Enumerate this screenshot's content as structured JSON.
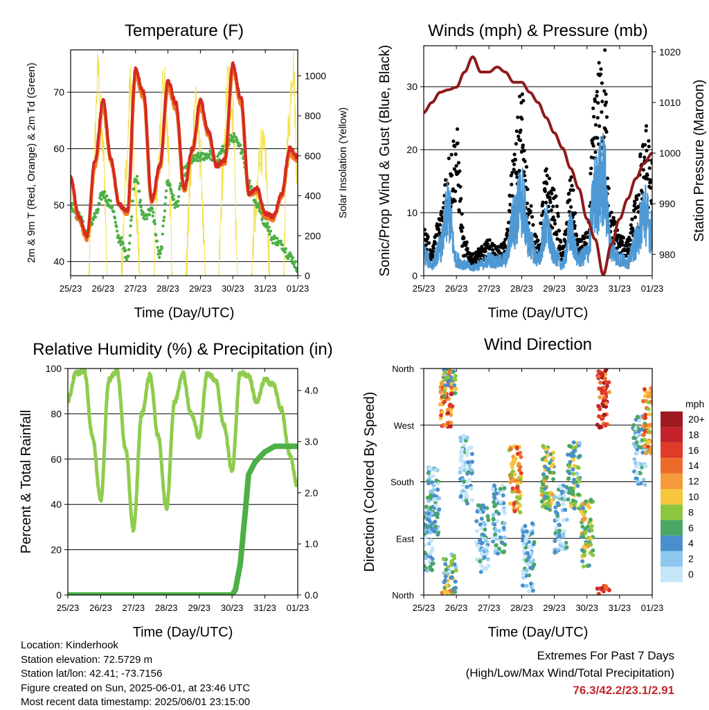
{
  "chart_data": [
    {
      "type": "line",
      "title": "Temperature (F)",
      "xlabel": "Time (Day/UTC)",
      "ylabel": "2m & 9m T (Red, Orange) & 2m Td (Green)",
      "ylabel_right": "Solar Insolation (Yellow)",
      "x_ticks": [
        "25/23",
        "26/23",
        "27/23",
        "28/23",
        "29/23",
        "30/23",
        "31/23",
        "01/23"
      ],
      "y_ticks": [
        40,
        50,
        60,
        70
      ],
      "y2_ticks": [
        0,
        200,
        400,
        600,
        800,
        1000
      ],
      "ylim": [
        37.5,
        77.5
      ],
      "y2lim": [
        0,
        1130
      ],
      "grid_y": true,
      "series": [
        {
          "name": "2m T",
          "color": "#d42a22",
          "x": [
            0,
            0.25,
            0.5,
            0.75,
            1.0,
            1.25,
            1.5,
            1.75,
            2.0,
            2.25,
            2.5,
            2.75,
            3.0,
            3.25,
            3.5,
            3.75,
            4.0,
            4.25,
            4.5,
            4.75,
            5.0,
            5.25,
            5.5,
            5.75,
            6.0,
            6.25,
            6.5,
            6.75,
            7.0
          ],
          "values": [
            55,
            48,
            44.5,
            58,
            68.5,
            58,
            50,
            49,
            74,
            70,
            51,
            57,
            72,
            68,
            53,
            60,
            68.5,
            63,
            57,
            58,
            75,
            69,
            52,
            53,
            48.5,
            48,
            52,
            60,
            58.5
          ]
        },
        {
          "name": "9m T",
          "color": "#f07a20",
          "x": [
            0,
            0.25,
            0.5,
            0.75,
            1.0,
            1.25,
            1.5,
            1.75,
            2.0,
            2.25,
            2.5,
            2.75,
            3.0,
            3.25,
            3.5,
            3.75,
            4.0,
            4.25,
            4.5,
            4.75,
            5.0,
            5.25,
            5.5,
            5.75,
            6.0,
            6.25,
            6.5,
            6.75,
            7.0
          ],
          "values": [
            54.5,
            47.5,
            44,
            57,
            67.5,
            57.5,
            50,
            48.5,
            73,
            69,
            50.5,
            56.5,
            71,
            67,
            52.5,
            59.5,
            67.5,
            62.5,
            57,
            57.5,
            74,
            68,
            52,
            52.5,
            48,
            47.5,
            51.5,
            59,
            58
          ]
        },
        {
          "name": "2m Td",
          "color": "#4cb046",
          "x": [
            0,
            0.25,
            0.5,
            0.75,
            1.0,
            1.25,
            1.5,
            1.75,
            2.0,
            2.25,
            2.5,
            2.75,
            3.0,
            3.25,
            3.5,
            3.75,
            4.0,
            4.25,
            4.5,
            4.75,
            5.0,
            5.25,
            5.5,
            5.75,
            6.0,
            6.25,
            6.5,
            6.75,
            7.0
          ],
          "values": [
            50,
            48,
            45,
            48,
            52,
            50,
            44,
            41,
            55,
            48,
            49,
            41,
            54,
            50,
            56,
            58,
            58.5,
            59,
            58,
            60,
            62,
            60,
            54,
            50,
            47,
            44,
            43,
            41,
            39
          ]
        },
        {
          "name": "Solar Insolation",
          "color": "#f2e04a",
          "x": [
            0.55,
            0.7,
            0.85,
            1.0,
            1.15,
            1.55,
            1.7,
            1.85,
            2.0,
            2.15,
            2.55,
            2.7,
            2.85,
            3.0,
            3.15,
            3.55,
            3.7,
            3.85,
            4.0,
            4.15,
            4.55,
            4.7,
            4.85,
            5.0,
            5.15,
            5.55,
            5.7,
            5.85,
            6.0,
            6.15,
            6.55,
            6.7,
            6.85,
            7.0
          ],
          "values": [
            0,
            500,
            1020,
            620,
            0,
            0,
            480,
            950,
            380,
            0,
            0,
            540,
            1000,
            700,
            0,
            0,
            500,
            900,
            600,
            0,
            0,
            520,
            980,
            820,
            0,
            0,
            300,
            640,
            580,
            0,
            0,
            700,
            1060,
            480
          ]
        }
      ]
    },
    {
      "type": "scatter",
      "title": "Winds (mph) & Pressure (mb)",
      "xlabel": "Time (Day/UTC)",
      "ylabel": "Sonic/Prop Wind & Gust (Blue, Black)",
      "ylabel_right": "Station Pressure (Maroon)",
      "x_ticks": [
        "25/23",
        "26/23",
        "27/23",
        "28/23",
        "29/23",
        "30/23",
        "31/23",
        "01/23"
      ],
      "y_ticks": [
        0,
        10,
        20,
        30
      ],
      "y2_ticks": [
        980,
        990,
        1000,
        1010,
        1020
      ],
      "ylim": [
        0,
        36.5
      ],
      "y2lim": [
        975.8,
        1021.2
      ],
      "grid_y": true,
      "series": [
        {
          "name": "Wind",
          "color": "#4e99d4",
          "x": [
            0,
            0.25,
            0.5,
            0.75,
            1.0,
            1.25,
            1.5,
            1.75,
            2.0,
            2.25,
            2.5,
            2.75,
            3.0,
            3.25,
            3.5,
            3.75,
            4.0,
            4.25,
            4.5,
            4.75,
            5.0,
            5.25,
            5.5,
            5.75,
            6.0,
            6.25,
            6.5,
            6.75,
            7.0
          ],
          "values": [
            4,
            2,
            5,
            12,
            3,
            2,
            1.5,
            2,
            3,
            2.5,
            3,
            10,
            14,
            6,
            3,
            9,
            4,
            2,
            8,
            3,
            4,
            15,
            18,
            5,
            3,
            2.5,
            6,
            12,
            8
          ]
        },
        {
          "name": "Gust",
          "color": "#000000",
          "x": [
            0,
            0.25,
            0.5,
            0.75,
            1.0,
            1.25,
            1.5,
            1.75,
            2.0,
            2.25,
            2.5,
            2.75,
            3.0,
            3.25,
            3.5,
            3.75,
            4.0,
            4.25,
            4.5,
            4.75,
            5.0,
            5.25,
            5.5,
            5.75,
            6.0,
            6.25,
            6.5,
            6.75,
            7.0
          ],
          "values": [
            7,
            4,
            9,
            17,
            21,
            5,
            3,
            4,
            5,
            4,
            5,
            17,
            27,
            10,
            5,
            15,
            12,
            4,
            14,
            5,
            6,
            26,
            34,
            9,
            6,
            5,
            11,
            22,
            17
          ]
        },
        {
          "name": "Station Pressure",
          "color": "#8e1a1a",
          "x": [
            0,
            0.25,
            0.5,
            0.75,
            1.0,
            1.25,
            1.5,
            1.75,
            2.0,
            2.25,
            2.5,
            2.75,
            3.0,
            3.25,
            3.5,
            3.75,
            4.0,
            4.25,
            4.5,
            4.75,
            5.0,
            5.25,
            5.5,
            5.75,
            6.0,
            6.25,
            6.5,
            6.75,
            7.0
          ],
          "values": [
            1008,
            1010,
            1012,
            1012.5,
            1013,
            1016,
            1019,
            1016,
            1016,
            1017,
            1016,
            1014,
            1014,
            1012,
            1010,
            1007,
            1004,
            1001,
            997,
            993,
            987,
            983,
            976,
            982,
            987,
            991,
            995,
            998,
            1000
          ]
        }
      ]
    },
    {
      "type": "line",
      "title": "Relative Humidity (%) & Precipitation (in)",
      "xlabel": "Time (Day/UTC)",
      "ylabel": "Percent & Total Rainfall",
      "x_ticks": [
        "25/23",
        "26/23",
        "27/23",
        "28/23",
        "29/23",
        "30/23",
        "31/23",
        "01/23"
      ],
      "y_ticks": [
        0,
        20,
        40,
        60,
        80,
        100
      ],
      "y2_ticks": [
        0.0,
        1.0,
        2.0,
        3.0,
        4.0
      ],
      "ylim": [
        0,
        100
      ],
      "y2lim": [
        0,
        4.43
      ],
      "grid_y": true,
      "series": [
        {
          "name": "Relative Humidity",
          "color": "#8fcc4e",
          "x": [
            0,
            0.25,
            0.5,
            0.75,
            1.0,
            1.25,
            1.5,
            1.75,
            2.0,
            2.25,
            2.5,
            2.75,
            3.0,
            3.25,
            3.5,
            3.75,
            4.0,
            4.25,
            4.5,
            4.75,
            5.0,
            5.25,
            5.5,
            5.75,
            6.0,
            6.25,
            6.5,
            6.75,
            7.0
          ],
          "values": [
            86,
            98,
            99,
            70,
            42,
            95,
            99,
            65,
            29,
            80,
            97,
            70,
            38,
            85,
            98,
            80,
            70,
            98,
            95,
            75,
            55,
            98,
            97,
            85,
            95,
            93,
            82,
            62,
            48
          ]
        },
        {
          "name": "Total Rainfall",
          "color": "#4cb046",
          "x": [
            0,
            1,
            2,
            3,
            4,
            5.0,
            5.1,
            5.25,
            5.4,
            5.5,
            5.7,
            6.0,
            6.3,
            6.5,
            7.0
          ],
          "values": [
            0,
            0,
            0,
            0,
            0,
            0,
            0.1,
            0.6,
            1.6,
            2.35,
            2.6,
            2.8,
            2.91,
            2.91,
            2.91
          ]
        }
      ]
    },
    {
      "type": "scatter",
      "title": "Wind Direction",
      "xlabel": "Time (Day/UTC)",
      "ylabel": "Direction (Colored By Speed)",
      "x_ticks": [
        "25/23",
        "26/23",
        "27/23",
        "28/23",
        "29/23",
        "30/23",
        "31/23",
        "01/23"
      ],
      "y_ticks": [
        "North",
        "East",
        "South",
        "West",
        "North"
      ],
      "ylim": [
        0,
        360
      ],
      "grid_y": true,
      "legend_title": "mph",
      "legend_levels": [
        "0",
        "2",
        "4",
        "6",
        "8",
        "10",
        "12",
        "14",
        "16",
        "18",
        "20+"
      ],
      "legend_colors": [
        "#c5e6f7",
        "#8ec8ef",
        "#4a8fcd",
        "#4aa664",
        "#8cc63f",
        "#f8c63c",
        "#f49a3a",
        "#ee6a2a",
        "#e03a28",
        "#c3222a",
        "#9e1a20"
      ],
      "clusters": [
        {
          "x": 0.1,
          "dir": 90,
          "speed": 3
        },
        {
          "x": 0.3,
          "dir": 150,
          "speed": 3
        },
        {
          "x": 0.7,
          "dir": 320,
          "speed": 14
        },
        {
          "x": 0.8,
          "dir": 10,
          "speed": 6
        },
        {
          "x": 1.3,
          "dir": 200,
          "speed": 2
        },
        {
          "x": 1.8,
          "dir": 90,
          "speed": 2
        },
        {
          "x": 2.3,
          "dir": 120,
          "speed": 3
        },
        {
          "x": 2.8,
          "dir": 185,
          "speed": 12
        },
        {
          "x": 3.2,
          "dir": 60,
          "speed": 2
        },
        {
          "x": 3.8,
          "dir": 190,
          "speed": 8
        },
        {
          "x": 4.2,
          "dir": 120,
          "speed": 3
        },
        {
          "x": 4.6,
          "dir": 190,
          "speed": 6
        },
        {
          "x": 5.0,
          "dir": 100,
          "speed": 8
        },
        {
          "x": 5.5,
          "dir": 320,
          "speed": 16
        },
        {
          "x": 6.6,
          "dir": 230,
          "speed": 3
        },
        {
          "x": 6.9,
          "dir": 280,
          "speed": 12
        }
      ]
    }
  ],
  "footer": {
    "location": "Location: Kinderhook",
    "elevation": "Station elevation: 72.5729 m",
    "latlon": "Station lat/lon: 42.41; -73.7156",
    "created": "Figure created on Sun, 2025-06-01, at 23:46 UTC",
    "recent": "Most recent data timestamp: 2025/06/01 23:15:00"
  },
  "extremes": {
    "title": "Extremes For Past 7 Days",
    "subtitle": "(High/Low/Max Wind/Total Precipitation)",
    "values": "76.3/42.2/23.1/2.91"
  }
}
